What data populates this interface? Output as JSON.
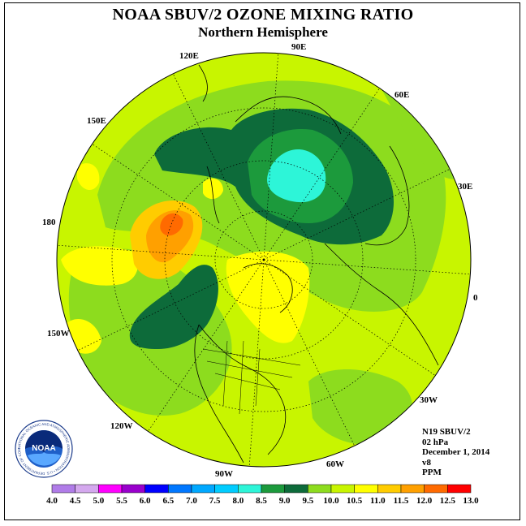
{
  "header": {
    "title": "NOAA SBUV/2 OZONE MIXING RATIO",
    "subtitle": "Northern Hemisphere"
  },
  "map": {
    "projection": "north-polar-stereographic",
    "longitude_labels": [
      "90E",
      "60E",
      "30E",
      "0",
      "30W",
      "60W",
      "90W",
      "120W",
      "150W",
      "180",
      "150E",
      "120E"
    ],
    "background_color": "#ffffff",
    "ocean_fill": "#c8f500"
  },
  "info": {
    "satellite": "N19 SBUV/2",
    "level": "02 hPa",
    "date": "December 1, 2014",
    "version": "v8",
    "units": "PPM"
  },
  "colorbar": {
    "labels": [
      "4.0",
      "4.5",
      "5.0",
      "5.5",
      "6.0",
      "6.5",
      "7.0",
      "7.5",
      "8.0",
      "8.5",
      "9.0",
      "9.5",
      "10.0",
      "10.5",
      "11.0",
      "11.5",
      "12.0",
      "12.5",
      "13.0"
    ],
    "colors": [
      "#b07ce8",
      "#d4a8ee",
      "#ff00ff",
      "#9900cc",
      "#0000ff",
      "#0077ff",
      "#00a8ff",
      "#00ccff",
      "#2df5d8",
      "#1c9a3c",
      "#0d6b3a",
      "#8ddc1e",
      "#c8f500",
      "#ffff00",
      "#ffcc00",
      "#ffa000",
      "#ff6a00",
      "#ff0000",
      "#9a5a3c"
    ]
  },
  "logo": {
    "text": "NOAA",
    "ring_text": "NATIONAL OCEANIC AND ATMOSPHERIC ADMINISTRATION • U.S. DEPARTMENT OF COMMERCE"
  }
}
